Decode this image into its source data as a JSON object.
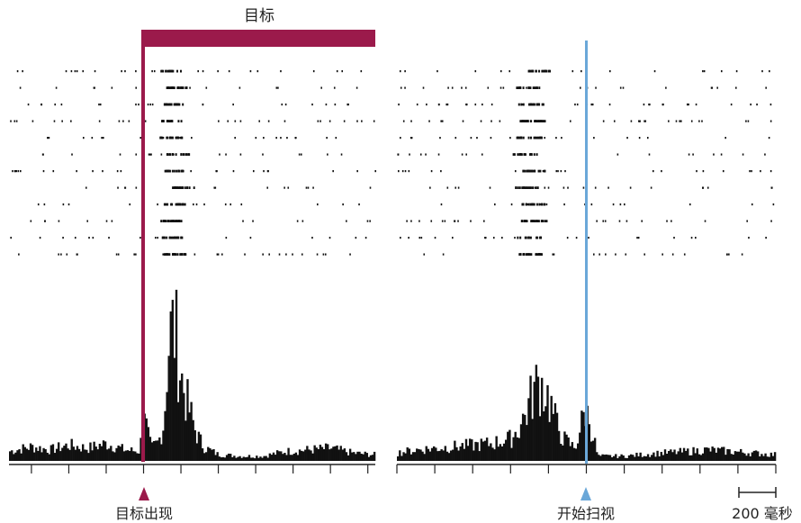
{
  "figure": {
    "target_label": "目标",
    "target_onset_label": "目标出现",
    "saccade_onset_label": "开始扫视",
    "scale_bar_label": "200 毫秒"
  },
  "colors": {
    "target": "#9b1a4b",
    "saccade": "#6aa7d8",
    "ink": "#111111"
  },
  "chart_data": [
    {
      "type": "raster+histogram",
      "alignment": "target onset",
      "x_unit": "ms",
      "xlim": [
        -360,
        620
      ],
      "tick_step_ms": 100,
      "event_line_ms": 0,
      "target_bar_ms": [
        0,
        620
      ],
      "raster_trials": 12,
      "raster_burst_ms": [
        60,
        140
      ],
      "histogram": [
        {
          "x": -360,
          "y": 6
        },
        {
          "x": -300,
          "y": 9
        },
        {
          "x": -250,
          "y": 7
        },
        {
          "x": -200,
          "y": 10
        },
        {
          "x": -150,
          "y": 8
        },
        {
          "x": -100,
          "y": 11
        },
        {
          "x": -50,
          "y": 7
        },
        {
          "x": -10,
          "y": 6
        },
        {
          "x": 0,
          "y": 30
        },
        {
          "x": 20,
          "y": 8
        },
        {
          "x": 40,
          "y": 12
        },
        {
          "x": 55,
          "y": 25
        },
        {
          "x": 65,
          "y": 70
        },
        {
          "x": 75,
          "y": 85
        },
        {
          "x": 85,
          "y": 82
        },
        {
          "x": 95,
          "y": 62
        },
        {
          "x": 105,
          "y": 48
        },
        {
          "x": 115,
          "y": 38
        },
        {
          "x": 125,
          "y": 30
        },
        {
          "x": 140,
          "y": 18
        },
        {
          "x": 160,
          "y": 9
        },
        {
          "x": 200,
          "y": 4
        },
        {
          "x": 260,
          "y": 3
        },
        {
          "x": 320,
          "y": 3
        },
        {
          "x": 380,
          "y": 6
        },
        {
          "x": 440,
          "y": 7
        },
        {
          "x": 500,
          "y": 8
        },
        {
          "x": 560,
          "y": 5
        },
        {
          "x": 610,
          "y": 4
        }
      ]
    },
    {
      "type": "raster+histogram",
      "alignment": "saccade onset",
      "x_unit": "ms",
      "xlim": [
        -500,
        500
      ],
      "tick_step_ms": 100,
      "event_line_ms": 0,
      "raster_trials": 12,
      "raster_burst_ms": [
        -180,
        -90
      ],
      "histogram": [
        {
          "x": -500,
          "y": 5
        },
        {
          "x": -450,
          "y": 7
        },
        {
          "x": -400,
          "y": 8
        },
        {
          "x": -350,
          "y": 9
        },
        {
          "x": -300,
          "y": 10
        },
        {
          "x": -250,
          "y": 11
        },
        {
          "x": -200,
          "y": 14
        },
        {
          "x": -180,
          "y": 20
        },
        {
          "x": -160,
          "y": 30
        },
        {
          "x": -140,
          "y": 44
        },
        {
          "x": -125,
          "y": 50
        },
        {
          "x": -110,
          "y": 46
        },
        {
          "x": -95,
          "y": 36
        },
        {
          "x": -80,
          "y": 24
        },
        {
          "x": -60,
          "y": 14
        },
        {
          "x": -30,
          "y": 8
        },
        {
          "x": 0,
          "y": 35
        },
        {
          "x": 30,
          "y": 3
        },
        {
          "x": 100,
          "y": 3
        },
        {
          "x": 200,
          "y": 5
        },
        {
          "x": 270,
          "y": 6
        },
        {
          "x": 320,
          "y": 7
        },
        {
          "x": 380,
          "y": 6
        },
        {
          "x": 440,
          "y": 5
        },
        {
          "x": 490,
          "y": 4
        }
      ]
    }
  ]
}
